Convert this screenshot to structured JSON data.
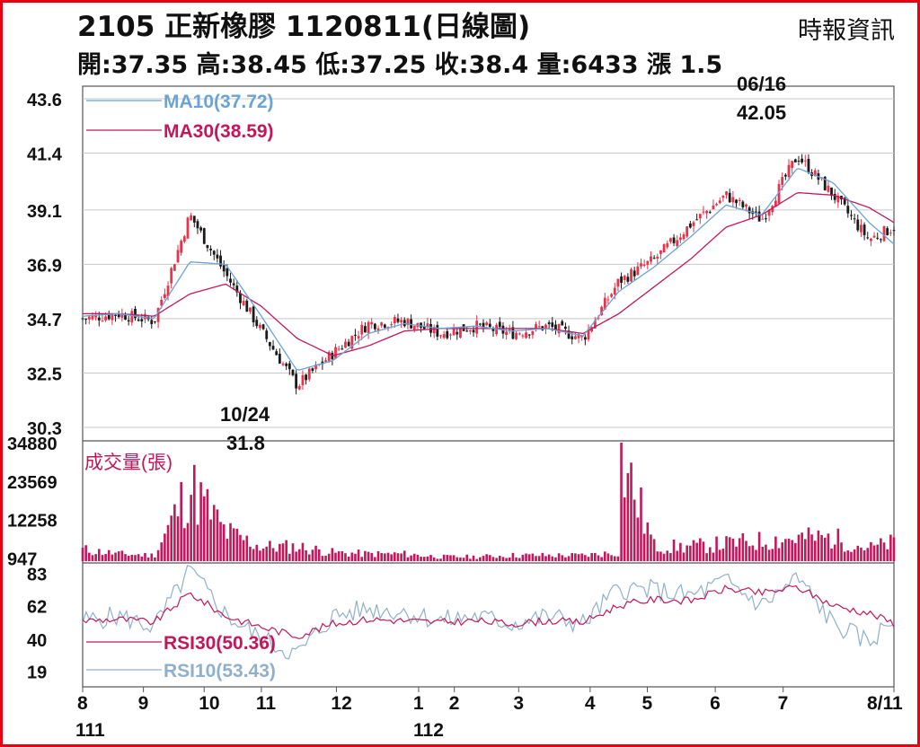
{
  "header": {
    "title": "2105  正新橡膠 1120811(日線圖)",
    "source": "時報資訊",
    "quote": "開:37.35 高:38.45 低:37.25 收:38.4 量:6433 漲 1.5"
  },
  "colors": {
    "frame": "#e60012",
    "up": "#e8334a",
    "down": "#1a1a1a",
    "ma10": "#6aa3d5",
    "ma30": "#c2185b",
    "volume": "#c2185b",
    "rsi30": "#c2185b",
    "rsi10": "#8fb0cc",
    "grid": "#c8c8c8"
  },
  "chart_data": [
    {
      "type": "candlestick",
      "panel": "price",
      "ylim": [
        30.3,
        43.6
      ],
      "y_ticks": [
        "43.6",
        "41.4",
        "39.1",
        "36.9",
        "34.7",
        "32.5",
        "30.3"
      ],
      "grid": true,
      "legend": [
        {
          "label": "MA10(37.72)",
          "color": "#6aa3d5"
        },
        {
          "label": "MA30(38.59)",
          "color": "#c2185b"
        }
      ],
      "annotations": [
        {
          "date": "06/16",
          "value": "42.05",
          "x_month": 6.55,
          "y": 42.05
        },
        {
          "date": "10/24",
          "value": "31.8",
          "x_month": 2.75,
          "y": 31.8
        }
      ],
      "x_months": [
        0,
        0.5,
        1,
        1.5,
        2,
        2.5,
        3,
        3.5,
        4,
        4.5,
        5,
        5.5,
        6,
        6.5,
        7,
        7.5,
        8,
        8.5,
        9,
        9.5,
        10,
        10.5,
        11,
        11.35
      ],
      "close": [
        34.7,
        34.9,
        34.6,
        38.9,
        36.5,
        34.2,
        32.0,
        33.3,
        34.5,
        34.6,
        34.1,
        34.4,
        34.1,
        34.4,
        33.9,
        36.2,
        37.1,
        38.5,
        39.7,
        38.7,
        41.3,
        39.7,
        37.9,
        38.4
      ],
      "ma10": [
        34.8,
        34.9,
        34.7,
        37.0,
        36.9,
        34.8,
        32.6,
        33.0,
        34.1,
        34.5,
        34.3,
        34.4,
        34.2,
        34.3,
        34.0,
        35.8,
        36.8,
        38.0,
        39.3,
        38.9,
        40.8,
        40.2,
        38.6,
        37.72
      ],
      "ma30": [
        34.9,
        34.9,
        34.8,
        35.7,
        36.1,
        35.2,
        33.9,
        33.2,
        33.6,
        34.2,
        34.3,
        34.3,
        34.3,
        34.3,
        34.1,
        34.9,
        36.0,
        37.1,
        38.4,
        38.9,
        39.8,
        39.7,
        39.2,
        38.59
      ]
    },
    {
      "type": "bar",
      "panel": "volume",
      "title": "成交量(張)",
      "y_ticks": [
        "34880",
        "23569",
        "12258",
        "947"
      ],
      "ylim": [
        0,
        34880
      ],
      "x_months": [
        0,
        0.5,
        1,
        1.5,
        2,
        2.5,
        3,
        3.5,
        4,
        4.5,
        5,
        5.5,
        6,
        6.5,
        7,
        7.5,
        7.55,
        8,
        8.5,
        9,
        9.5,
        10,
        10.5,
        11,
        11.35
      ],
      "values": [
        4000,
        2500,
        2000,
        26000,
        10000,
        5000,
        5000,
        3000,
        2500,
        2500,
        1500,
        1500,
        2000,
        2000,
        2000,
        3000,
        34880,
        5000,
        5000,
        6000,
        7000,
        8000,
        8000,
        4500,
        6433
      ]
    },
    {
      "type": "line",
      "panel": "rsi",
      "y_ticks": [
        "83",
        "62",
        "40",
        "19"
      ],
      "ylim": [
        19,
        83
      ],
      "legend": [
        {
          "label": "RSI30(50.36)",
          "color": "#c2185b"
        },
        {
          "label": "RSI10(53.43)",
          "color": "#8fb0cc"
        }
      ],
      "x_months": [
        0,
        0.5,
        1,
        1.5,
        2,
        2.5,
        3,
        3.5,
        4,
        4.5,
        5,
        5.5,
        6,
        6.5,
        7,
        7.5,
        8,
        8.5,
        9,
        9.5,
        10,
        10.5,
        11,
        11.35
      ],
      "series": [
        {
          "name": "RSI30",
          "values": [
            52,
            53,
            51,
            70,
            55,
            48,
            42,
            50,
            53,
            52,
            51,
            52,
            50,
            52,
            51,
            62,
            66,
            65,
            73,
            70,
            74,
            62,
            57,
            50.36
          ]
        },
        {
          "name": "RSI10",
          "values": [
            52,
            55,
            48,
            85,
            56,
            40,
            30,
            55,
            60,
            58,
            52,
            55,
            50,
            55,
            50,
            73,
            72,
            68,
            78,
            62,
            80,
            50,
            38,
            53.43
          ]
        }
      ]
    }
  ],
  "x_axis": {
    "months": [
      "8",
      "9",
      "10",
      "11",
      "12",
      "1",
      "2",
      "3",
      "4",
      "5",
      "6",
      "7",
      "8/11"
    ],
    "years": [
      "111",
      "112"
    ]
  }
}
